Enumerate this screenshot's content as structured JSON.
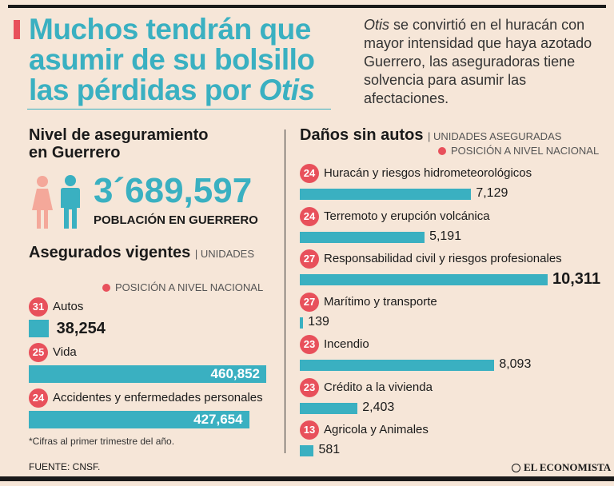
{
  "header": {
    "title_part1": "Muchos tendrán que asumir de su bolsillo las pérdidas por ",
    "title_emphasis": "Otis",
    "intro_emphasis": "Otis",
    "intro_rest": " se convirtió en el huracán con mayor intensidad que haya azotado Guerrero, las aseguradoras tiene solvencia para asumir las afectaciones."
  },
  "left": {
    "level_title_1": "Nivel de aseguramiento",
    "level_title_2": "en Guerrero",
    "population": "3´689,597",
    "population_label": "POBLACIÓN EN GUERRERO",
    "insured_title": "Asegurados vigentes",
    "insured_unit": "| UNIDADES",
    "legend": "POSICIÓN A NIVEL NACIONAL",
    "note": "*Cifras al primer trimestre del año."
  },
  "right": {
    "title": "Daños sin autos",
    "unit": "| UNIDADES ASEGURADAS",
    "legend": "POSICIÓN A NIVEL NACIONAL"
  },
  "footer": {
    "source": "FUENTE: CNSF.",
    "brand": "EL ECONOMISTA"
  },
  "colors": {
    "accent": "#3ab0c1",
    "rank": "#e8505b",
    "background": "#f6e6d8"
  },
  "chart_data": [
    {
      "type": "bar",
      "title": "Asegurados vigentes",
      "unit": "UNIDADES",
      "categories": [
        "Autos",
        "Vida",
        "Accidentes y enfermedades  personales"
      ],
      "values": [
        38254,
        460852,
        427654
      ],
      "value_labels": [
        "38,254",
        "460,852",
        "427,654"
      ],
      "ranks": [
        31,
        25,
        24
      ]
    },
    {
      "type": "bar",
      "title": "Daños sin autos",
      "unit": "UNIDADES ASEGURADAS",
      "categories": [
        "Huracán y riesgos hidrometeorológicos",
        "Terremoto y erupción volcánica",
        "Responsabilidad civil y riesgos profesionales",
        "Marítimo y transporte",
        "Incendio",
        "Crédito a la vivienda",
        "Agricola y Animales"
      ],
      "values": [
        7129,
        5191,
        10311,
        139,
        8093,
        2403,
        581
      ],
      "value_labels": [
        "7,129",
        "5,191",
        "10,311",
        "139",
        "8,093",
        "2,403",
        "581"
      ],
      "ranks": [
        24,
        24,
        27,
        27,
        23,
        23,
        13
      ]
    }
  ]
}
